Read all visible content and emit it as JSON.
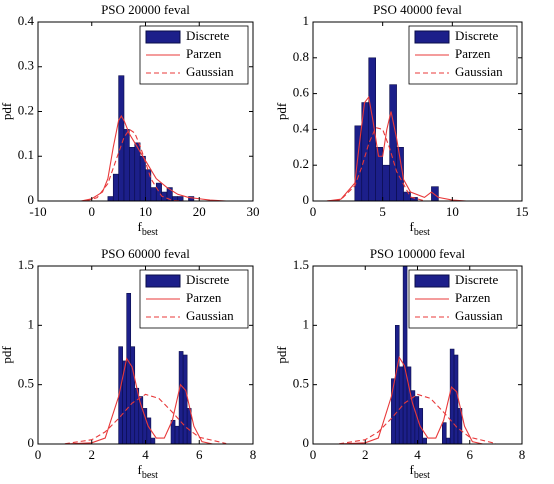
{
  "chart_data": [
    {
      "type": "histogram",
      "title": "PSO 20000 feval",
      "ylabel": "pdf",
      "xlabel": "f",
      "xlabel_sub": "best",
      "xlim": [
        -10,
        30
      ],
      "xticks": [
        -10,
        0,
        10,
        20,
        30
      ],
      "ylim": [
        0,
        0.4
      ],
      "yticks": [
        0,
        0.1,
        0.2,
        0.3,
        0.4
      ],
      "legend": "northeast",
      "series": [
        {
          "name": "Discrete",
          "color": "#1c1f8a",
          "bins": [
            3,
            4,
            5,
            6,
            7,
            8,
            9,
            10,
            11,
            12,
            13,
            14,
            15,
            16,
            17,
            18,
            19
          ],
          "values": [
            0.01,
            0.06,
            0.28,
            0.16,
            0.12,
            0.13,
            0.1,
            0.07,
            0.03,
            0.04,
            0.02,
            0.03,
            0.01,
            0.01,
            0,
            0.01
          ]
        },
        {
          "name": "Parzen",
          "color": "#e8393a",
          "x": [
            -2,
            0,
            2,
            3,
            4,
            5,
            5.5,
            6,
            7,
            8,
            9,
            10,
            12,
            14,
            16,
            18,
            20,
            22,
            25
          ],
          "values": [
            0,
            0.005,
            0.02,
            0.05,
            0.12,
            0.18,
            0.19,
            0.18,
            0.15,
            0.13,
            0.11,
            0.09,
            0.05,
            0.03,
            0.015,
            0.008,
            0.005,
            0.002,
            0
          ]
        },
        {
          "name": "Gaussian",
          "color": "#e8393a",
          "dash": true,
          "x": [
            -1,
            1,
            3,
            5,
            6,
            7,
            8,
            9,
            11,
            13,
            15,
            17
          ],
          "values": [
            0.0007,
            0.0074,
            0.039,
            0.108,
            0.142,
            0.16,
            0.152,
            0.123,
            0.05,
            0.011,
            0.0012,
            0.0001
          ]
        }
      ]
    },
    {
      "type": "histogram",
      "title": "PSO 40000 feval",
      "ylabel": "pdf",
      "xlabel": "f",
      "xlabel_sub": "best",
      "xlim": [
        0,
        15
      ],
      "xticks": [
        0,
        5,
        10,
        15
      ],
      "ylim": [
        0,
        1
      ],
      "yticks": [
        0,
        0.2,
        0.4,
        0.6,
        0.8,
        1
      ],
      "legend": "northeast",
      "series": [
        {
          "name": "Discrete",
          "color": "#1c1f8a",
          "bins": [
            3,
            3.5,
            4,
            4.5,
            5,
            5.5,
            6,
            6.5,
            7,
            7.5,
            8,
            8.5,
            9
          ],
          "values": [
            0.42,
            0.55,
            0.8,
            0.3,
            0.2,
            0.65,
            0.3,
            0.05,
            0.02,
            0,
            0,
            0.08
          ]
        },
        {
          "name": "Parzen",
          "color": "#e8393a",
          "x": [
            1,
            2,
            3,
            3.3,
            3.7,
            4,
            4.3,
            4.7,
            5,
            5.3,
            5.6,
            6,
            6.5,
            7,
            8,
            8.5,
            9,
            10,
            11
          ],
          "values": [
            0,
            0.01,
            0.1,
            0.3,
            0.55,
            0.58,
            0.45,
            0.25,
            0.25,
            0.4,
            0.5,
            0.35,
            0.12,
            0.05,
            0.02,
            0.05,
            0.02,
            0.005,
            0
          ]
        },
        {
          "name": "Gaussian",
          "color": "#e8393a",
          "dash": true,
          "x": [
            1,
            2,
            3,
            3.5,
            4,
            4.5,
            5,
            5.5,
            6,
            7,
            8
          ],
          "values": [
            0.0002,
            0.0074,
            0.085,
            0.189,
            0.32,
            0.41,
            0.4,
            0.295,
            0.165,
            0.022,
            0.001
          ]
        }
      ]
    },
    {
      "type": "histogram",
      "title": "PSO 60000 feval",
      "ylabel": "pdf",
      "xlabel": "f",
      "xlabel_sub": "best",
      "xlim": [
        0,
        8
      ],
      "xticks": [
        0,
        2,
        4,
        6,
        8
      ],
      "ylim": [
        0,
        1.5
      ],
      "yticks": [
        0,
        0.5,
        1,
        1.5
      ],
      "legend": "northeast",
      "series": [
        {
          "name": "Discrete",
          "color": "#1c1f8a",
          "bins": [
            3,
            3.15,
            3.3,
            3.45,
            3.6,
            3.75,
            3.9,
            4.05,
            4.2,
            4.35,
            4.5,
            4.65,
            4.8,
            4.95,
            5.1,
            5.25,
            5.4,
            5.55,
            5.7
          ],
          "values": [
            0.82,
            0.7,
            1.27,
            0.82,
            0.47,
            0.4,
            0.3,
            0.22,
            0.05,
            0,
            0,
            0,
            0,
            0.2,
            0.15,
            0.78,
            0.75,
            0.3
          ]
        },
        {
          "name": "Parzen",
          "color": "#e8393a",
          "x": [
            1,
            2,
            2.5,
            3,
            3.3,
            3.5,
            3.8,
            4.1,
            4.4,
            4.7,
            5,
            5.3,
            5.5,
            5.8,
            6.1,
            6.5,
            7
          ],
          "values": [
            0,
            0.01,
            0.05,
            0.4,
            0.72,
            0.65,
            0.35,
            0.15,
            0.05,
            0.05,
            0.2,
            0.5,
            0.45,
            0.15,
            0.02,
            0,
            0
          ]
        },
        {
          "name": "Gaussian",
          "color": "#e8393a",
          "dash": true,
          "x": [
            1,
            2,
            2.5,
            3,
            3.5,
            4,
            4.5,
            5,
            5.5,
            6,
            7
          ],
          "values": [
            0.002,
            0.036,
            0.102,
            0.215,
            0.344,
            0.418,
            0.384,
            0.268,
            0.142,
            0.057,
            0.004
          ]
        }
      ]
    },
    {
      "type": "histogram",
      "title": "PSO 100000 feval",
      "ylabel": "pdf",
      "xlabel": "f",
      "xlabel_sub": "best",
      "xlim": [
        0,
        8
      ],
      "xticks": [
        0,
        2,
        4,
        6,
        8
      ],
      "ylim": [
        0,
        1.5
      ],
      "yticks": [
        0,
        0.5,
        1,
        1.5
      ],
      "legend": "northeast",
      "series": [
        {
          "name": "Discrete",
          "color": "#1c1f8a",
          "bins": [
            3,
            3.15,
            3.3,
            3.45,
            3.6,
            3.75,
            3.9,
            4.05,
            4.2,
            4.35,
            4.5,
            4.65,
            4.8,
            4.95,
            5.1,
            5.25,
            5.4,
            5.55,
            5.7
          ],
          "values": [
            0.55,
            1,
            0.65,
            1.5,
            0.65,
            0.45,
            0.4,
            0.3,
            0.05,
            0,
            0,
            0,
            0,
            0.18,
            0.05,
            0.8,
            0.75,
            0.3
          ]
        },
        {
          "name": "Parzen",
          "color": "#e8393a",
          "x": [
            1,
            2,
            2.5,
            3,
            3.3,
            3.5,
            3.8,
            4.1,
            4.4,
            4.7,
            5,
            5.3,
            5.5,
            5.8,
            6.1,
            6.5,
            7
          ],
          "values": [
            0,
            0.01,
            0.05,
            0.4,
            0.73,
            0.66,
            0.35,
            0.15,
            0.05,
            0.05,
            0.2,
            0.48,
            0.44,
            0.15,
            0.02,
            0,
            0
          ]
        },
        {
          "name": "Gaussian",
          "color": "#e8393a",
          "dash": true,
          "x": [
            1,
            2,
            2.5,
            3,
            3.5,
            4,
            4.5,
            5,
            5.5,
            6,
            7
          ],
          "values": [
            0.002,
            0.036,
            0.102,
            0.215,
            0.344,
            0.418,
            0.384,
            0.268,
            0.142,
            0.057,
            0.004
          ]
        }
      ]
    }
  ]
}
